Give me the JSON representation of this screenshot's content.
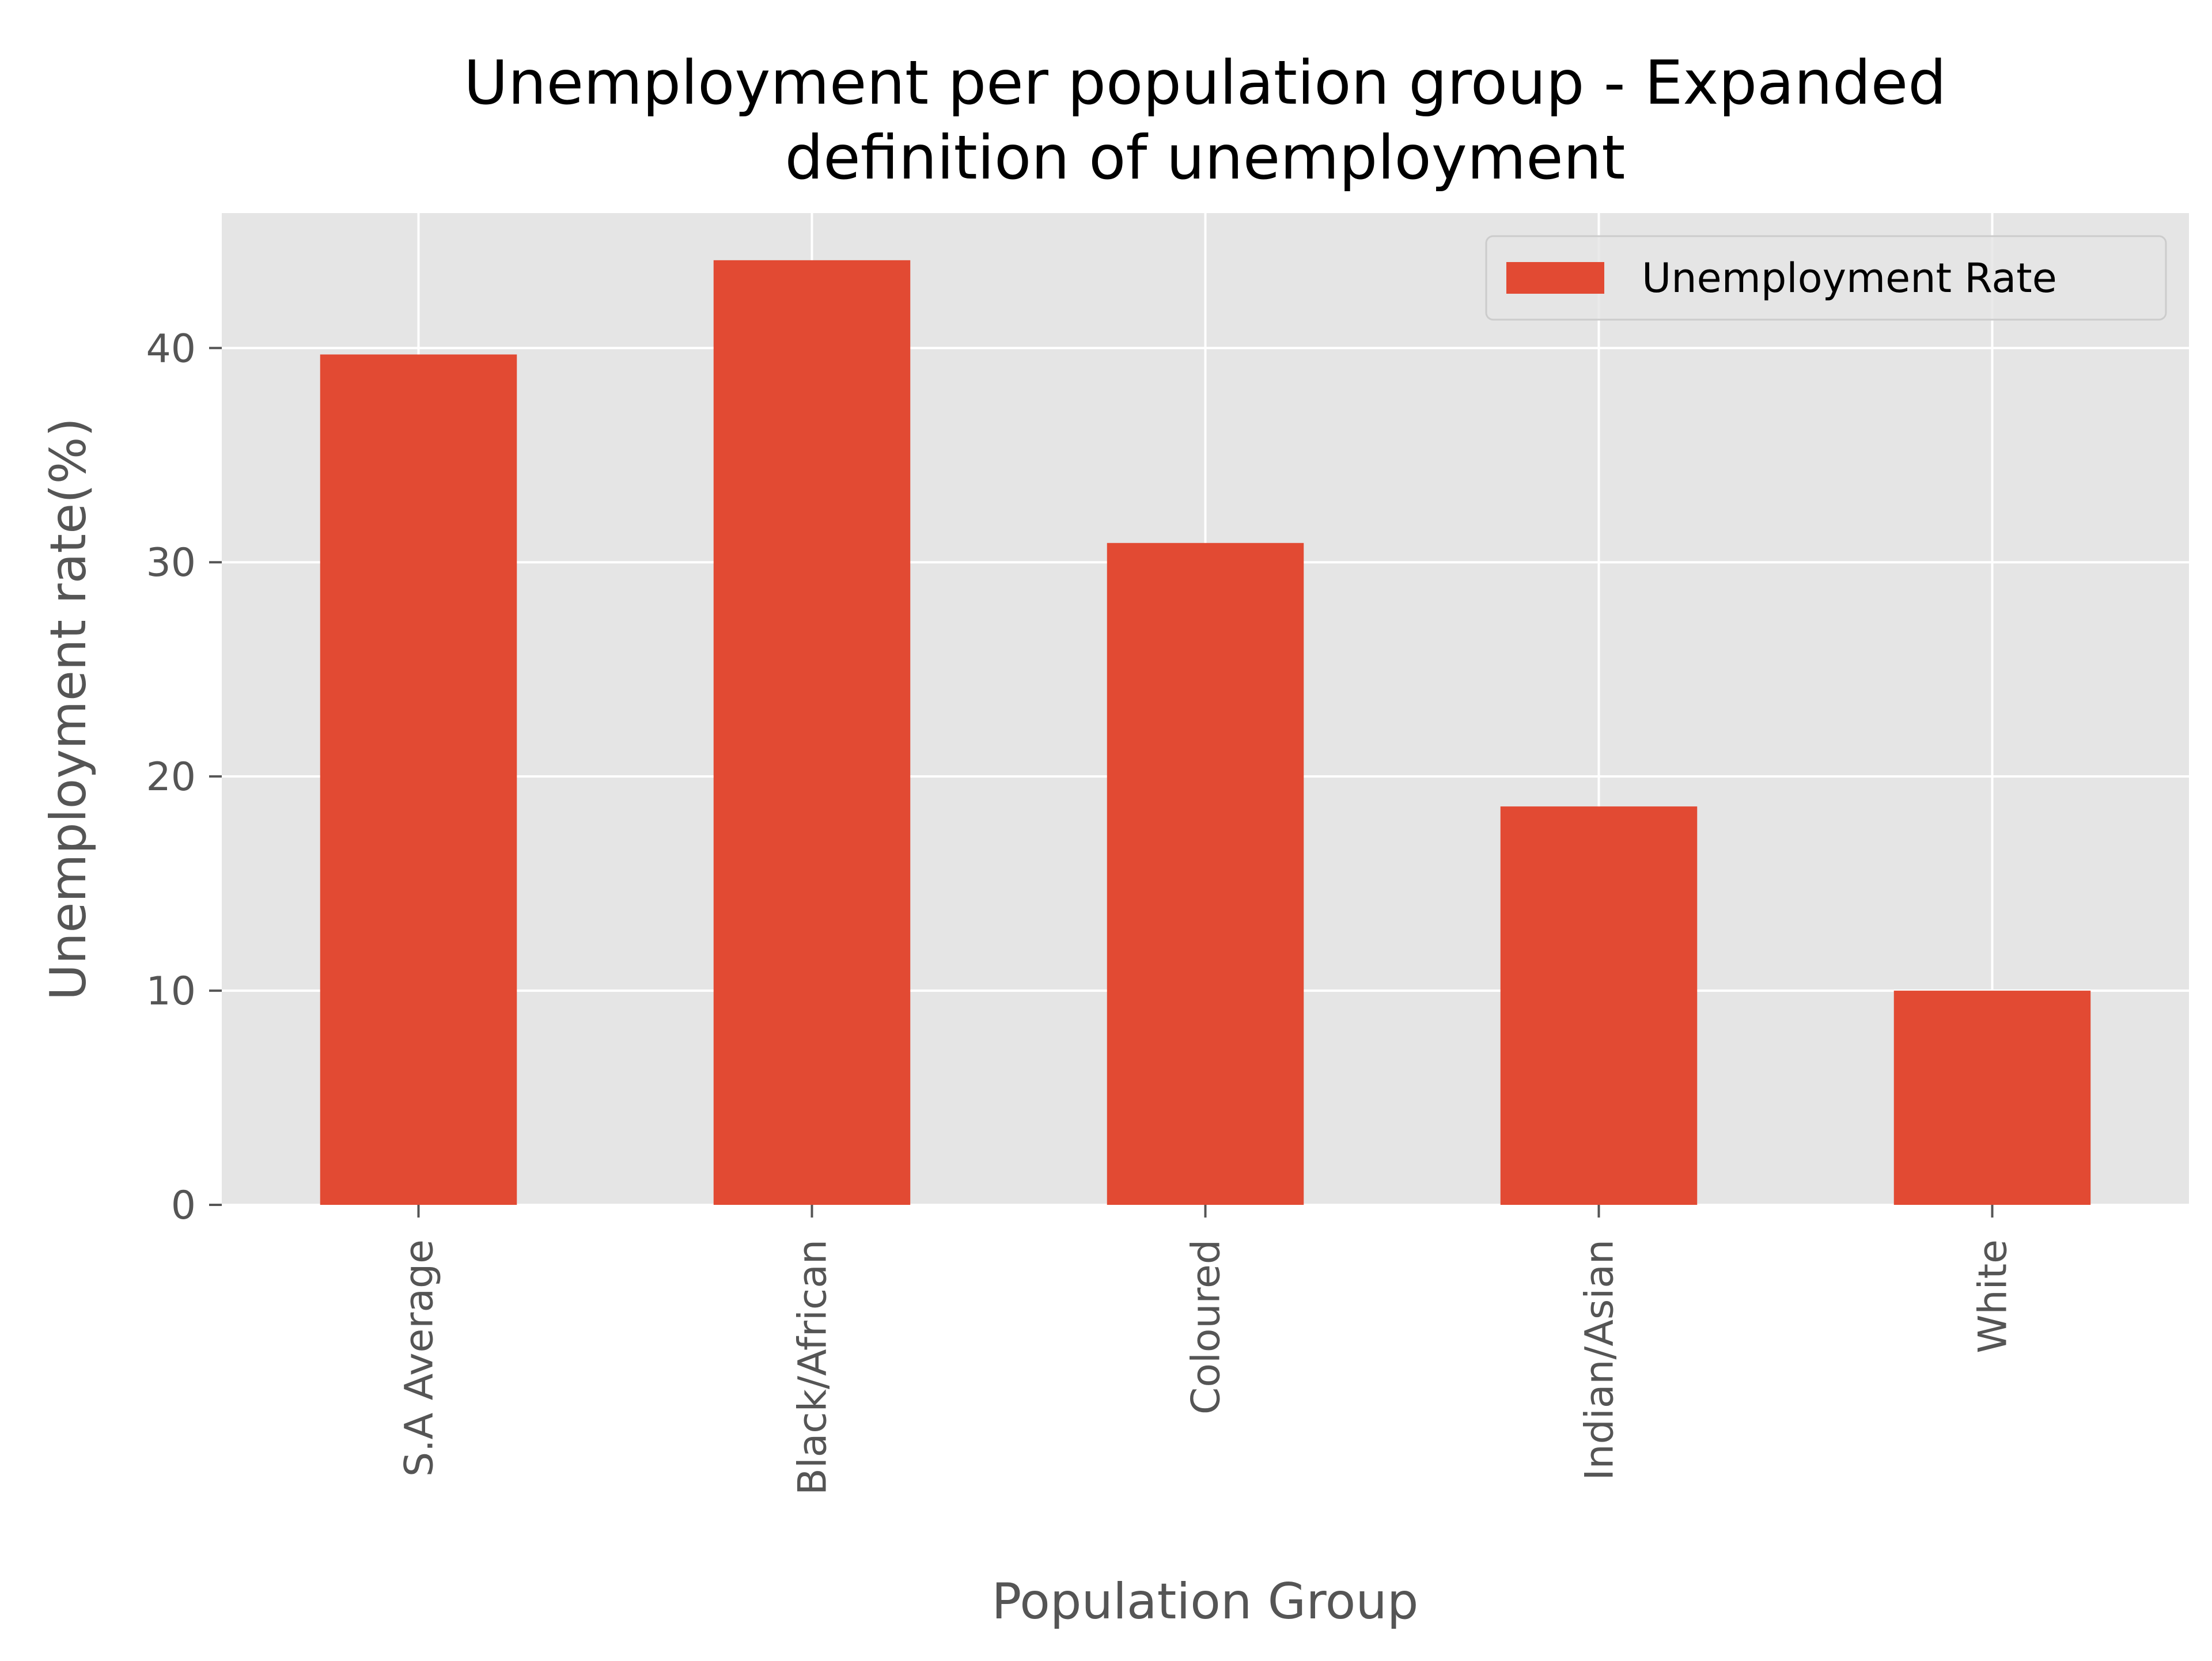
{
  "chart_data": {
    "type": "bar",
    "title_lines": [
      "Unemployment per population group - Expanded",
      "definition of unemployment"
    ],
    "xlabel": "Population Group",
    "ylabel": "Unemployment rate(%)",
    "categories": [
      "S.A Average",
      "Black/African",
      "Coloured",
      "Indian/Asian",
      "White"
    ],
    "series": [
      {
        "name": "Unemployment Rate",
        "values": [
          39.7,
          44.1,
          30.9,
          18.6,
          10.0
        ]
      }
    ],
    "ylim": [
      0,
      46.3
    ],
    "yticks": [
      0,
      10,
      20,
      30,
      40
    ],
    "grid": true,
    "legend": "top-right",
    "colors": {
      "bar": "#E24A33",
      "plot_background": "#E5E5E5",
      "grid": "#FFFFFF",
      "tick_text": "#555555"
    }
  }
}
